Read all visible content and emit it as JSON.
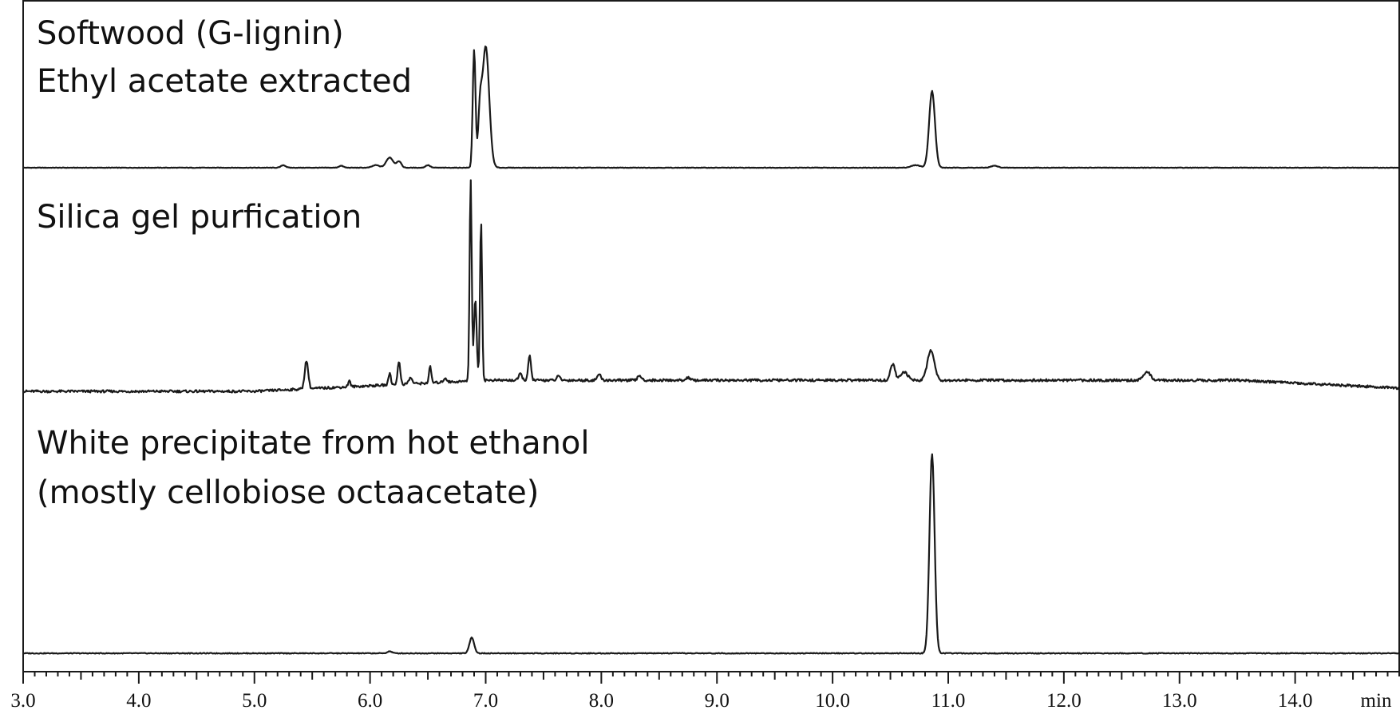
{
  "chart_data": {
    "type": "line",
    "title": "",
    "xlabel": "",
    "ylabel": "",
    "x_unit": "min",
    "xlim": [
      3.0,
      14.9
    ],
    "x_ticks": [
      "3.0",
      "4.0",
      "5.0",
      "6.0",
      "7.0",
      "8.0",
      "9.0",
      "10.0",
      "11.0",
      "12.0",
      "13.0",
      "14.0"
    ],
    "x_tick_values": [
      3,
      4,
      5,
      6,
      7,
      8,
      9,
      10,
      11,
      12,
      13,
      14
    ],
    "minor_tick_step": 0.1,
    "grid": false,
    "y_ticks": false,
    "series": [
      {
        "label_lines": [
          "Softwood (G-lignin)",
          "Ethyl acetate extracted"
        ],
        "peaks": [
          {
            "rt": 5.25,
            "height": 0.02,
            "width": 0.02
          },
          {
            "rt": 5.75,
            "height": 0.015,
            "width": 0.02
          },
          {
            "rt": 6.05,
            "height": 0.02,
            "width": 0.03
          },
          {
            "rt": 6.17,
            "height": 0.08,
            "width": 0.03
          },
          {
            "rt": 6.25,
            "height": 0.05,
            "width": 0.02
          },
          {
            "rt": 6.5,
            "height": 0.02,
            "width": 0.02
          },
          {
            "rt": 6.9,
            "height": 0.92,
            "width": 0.012
          },
          {
            "rt": 6.95,
            "height": 0.35,
            "width": 0.015
          },
          {
            "rt": 7.0,
            "height": 0.95,
            "width": 0.03
          },
          {
            "rt": 10.72,
            "height": 0.02,
            "width": 0.04
          },
          {
            "rt": 10.86,
            "height": 0.6,
            "width": 0.025
          },
          {
            "rt": 11.4,
            "height": 0.015,
            "width": 0.03
          }
        ]
      },
      {
        "label_lines": [
          "Silica gel purfication"
        ],
        "peaks": [
          {
            "rt": 5.45,
            "height": 0.14,
            "width": 0.015
          },
          {
            "rt": 5.82,
            "height": 0.03,
            "width": 0.01
          },
          {
            "rt": 6.17,
            "height": 0.06,
            "width": 0.01
          },
          {
            "rt": 6.25,
            "height": 0.11,
            "width": 0.012
          },
          {
            "rt": 6.35,
            "height": 0.03,
            "width": 0.015
          },
          {
            "rt": 6.52,
            "height": 0.08,
            "width": 0.01
          },
          {
            "rt": 6.65,
            "height": 0.02,
            "width": 0.015
          },
          {
            "rt": 6.87,
            "height": 1.0,
            "width": 0.009
          },
          {
            "rt": 6.91,
            "height": 0.4,
            "width": 0.012
          },
          {
            "rt": 6.96,
            "height": 0.8,
            "width": 0.009
          },
          {
            "rt": 7.38,
            "height": 0.12,
            "width": 0.012
          },
          {
            "rt": 7.3,
            "height": 0.03,
            "width": 0.015
          },
          {
            "rt": 7.63,
            "height": 0.02,
            "width": 0.015
          },
          {
            "rt": 7.98,
            "height": 0.03,
            "width": 0.015
          },
          {
            "rt": 8.33,
            "height": 0.025,
            "width": 0.015
          },
          {
            "rt": 8.75,
            "height": 0.015,
            "width": 0.015
          },
          {
            "rt": 10.52,
            "height": 0.08,
            "width": 0.02
          },
          {
            "rt": 10.62,
            "height": 0.04,
            "width": 0.03
          },
          {
            "rt": 10.85,
            "height": 0.15,
            "width": 0.03
          },
          {
            "rt": 12.72,
            "height": 0.04,
            "width": 0.03
          }
        ]
      },
      {
        "label_lines": [
          "White precipitate from hot ethanol",
          "(mostly cellobiose octaacetate)"
        ],
        "peaks": [
          {
            "rt": 6.17,
            "height": 0.01,
            "width": 0.02
          },
          {
            "rt": 6.88,
            "height": 0.08,
            "width": 0.02
          },
          {
            "rt": 10.86,
            "height": 1.0,
            "width": 0.022
          }
        ]
      }
    ]
  }
}
